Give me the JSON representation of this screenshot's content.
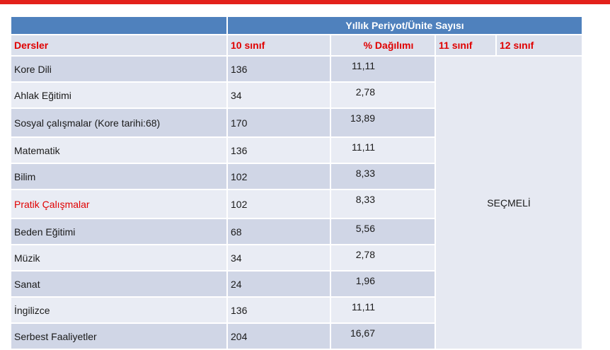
{
  "header": {
    "title": "Yıllık Periyot/Ünite Sayısı",
    "col_subject": "Dersler",
    "col_10": "10 sınıf",
    "col_pct": "% Dağılımı",
    "col_11": "11 sınıf",
    "col_12": "12 sınıf"
  },
  "elective_label": "SEÇMELİ",
  "rows": [
    {
      "subject": "Kore Dili",
      "hours": "136",
      "pct": "11,11"
    },
    {
      "subject": "Ahlak Eğitimi",
      "hours": "34",
      "pct": "2,78"
    },
    {
      "subject": "Sosyal çalışmalar (Kore tarihi:68)",
      "hours": "170",
      "pct": "13,89"
    },
    {
      "subject": "Matematik",
      "hours": "136",
      "pct": "11,11"
    },
    {
      "subject": "Bilim",
      "hours": "102",
      "pct": "8,33"
    },
    {
      "subject": "Pratik Çalışmalar",
      "hours": "102",
      "pct": "8,33"
    },
    {
      "subject": "Beden Eğitimi",
      "hours": "68",
      "pct": "5,56"
    },
    {
      "subject": "Müzik",
      "hours": "34",
      "pct": "2,78"
    },
    {
      "subject": "Sanat",
      "hours": "24",
      "pct": "1,96"
    },
    {
      "subject": "İngilizce",
      "hours": "136",
      "pct": "11,11"
    },
    {
      "subject": "Serbest Faaliyetler",
      "hours": "204",
      "pct": "16,67"
    }
  ],
  "colors": {
    "accent_red": "#e3211b",
    "header_blue": "#4f81bd",
    "highlight_text": "#e00000"
  }
}
